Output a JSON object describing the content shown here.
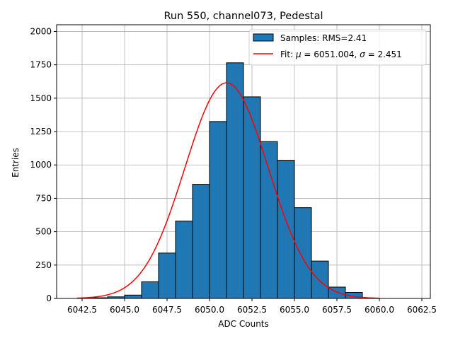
{
  "chart_data": {
    "type": "bar",
    "title": "Run 550, channel073, Pedestal",
    "xlabel": "ADC Counts",
    "ylabel": "Entries",
    "xlim": [
      6041.0,
      6063.0
    ],
    "ylim": [
      0,
      2050
    ],
    "grid": true,
    "legend_placement": "upper-right",
    "x_ticks": [
      6042.5,
      6045.0,
      6047.5,
      6050.0,
      6052.5,
      6055.0,
      6057.5,
      6060.0,
      6062.5
    ],
    "x_tick_labels": [
      "6042.5",
      "6045.0",
      "6047.5",
      "6050.0",
      "6052.5",
      "6055.0",
      "6057.5",
      "6060.0",
      "6062.5"
    ],
    "y_ticks": [
      0,
      250,
      500,
      750,
      1000,
      1250,
      1500,
      1750,
      2000
    ],
    "y_tick_labels": [
      "0",
      "250",
      "500",
      "750",
      "1000",
      "1250",
      "1500",
      "1750",
      "2000"
    ],
    "histogram": {
      "name": "Samples: RMS=2.41",
      "color": "#1f77b4",
      "edgecolor": "#000000",
      "bin_edges": [
        6043,
        6044,
        6045,
        6046,
        6047,
        6048,
        6049,
        6050,
        6051,
        6052,
        6053,
        6054,
        6055,
        6056,
        6057,
        6058,
        6059
      ],
      "counts": [
        5,
        12,
        25,
        125,
        340,
        580,
        855,
        1325,
        1765,
        1510,
        1175,
        1035,
        680,
        280,
        85,
        45,
        10
      ]
    },
    "fit": {
      "name": "Fit: μ = 6051.004, σ = 2.451",
      "label_prefix": "Fit: ",
      "mu_symbol": "μ",
      "mu_text": " = 6051.004, ",
      "sigma_symbol": "σ",
      "sigma_text": " = 2.451",
      "color": "#ff0000",
      "mu": 6051.004,
      "sigma": 2.451,
      "amplitude": 1615,
      "x_range": [
        6042.2,
        6060.0
      ]
    },
    "legend": [
      {
        "name": "Samples: RMS=2.41"
      },
      {
        "name": "Fit: μ = 6051.004, σ = 2.451"
      }
    ]
  }
}
